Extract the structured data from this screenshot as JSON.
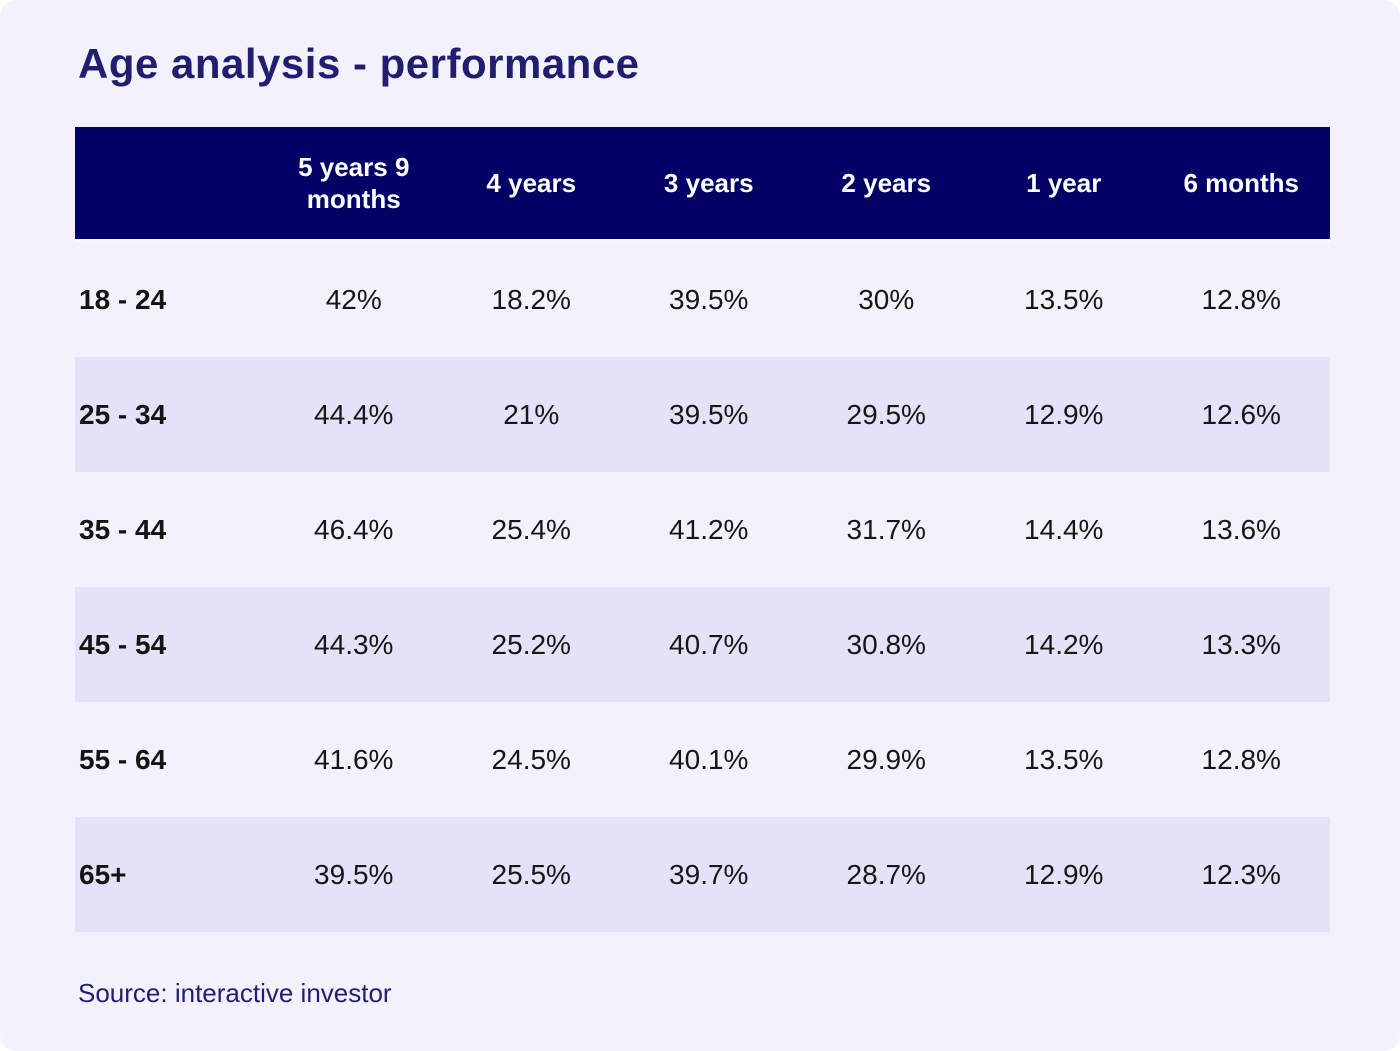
{
  "title": "Age analysis - performance",
  "source": "Source: interactive investor",
  "table": {
    "columns": [
      "",
      "5 years 9 months",
      "4 years",
      "3 years",
      "2 years",
      "1 year",
      "6 months"
    ],
    "rows": [
      {
        "label": "18 - 24",
        "values": [
          "42%",
          "18.2%",
          "39.5%",
          "30%",
          "13.5%",
          "12.8%"
        ]
      },
      {
        "label": "25 - 34",
        "values": [
          "44.4%",
          "21%",
          "39.5%",
          "29.5%",
          "12.9%",
          "12.6%"
        ]
      },
      {
        "label": "35 - 44",
        "values": [
          "46.4%",
          "25.4%",
          "41.2%",
          "31.7%",
          "14.4%",
          "13.6%"
        ]
      },
      {
        "label": "45 - 54",
        "values": [
          "44.3%",
          "25.2%",
          "40.7%",
          "30.8%",
          "14.2%",
          "13.3%"
        ]
      },
      {
        "label": "55 - 64",
        "values": [
          "41.6%",
          "24.5%",
          "40.1%",
          "29.9%",
          "13.5%",
          "12.8%"
        ]
      },
      {
        "label": "65+",
        "values": [
          "39.5%",
          "25.5%",
          "39.7%",
          "28.7%",
          "12.9%",
          "12.3%"
        ]
      }
    ]
  },
  "chart_data": {
    "type": "table",
    "title": "Age analysis - performance",
    "categories": [
      "5 years 9 months",
      "4 years",
      "3 years",
      "2 years",
      "1 year",
      "6 months"
    ],
    "series": [
      {
        "name": "18 - 24",
        "values": [
          42,
          18.2,
          39.5,
          30,
          13.5,
          12.8
        ]
      },
      {
        "name": "25 - 34",
        "values": [
          44.4,
          21,
          39.5,
          29.5,
          12.9,
          12.6
        ]
      },
      {
        "name": "35 - 44",
        "values": [
          46.4,
          25.4,
          41.2,
          31.7,
          14.4,
          13.6
        ]
      },
      {
        "name": "45 - 54",
        "values": [
          44.3,
          25.2,
          40.7,
          30.8,
          14.2,
          13.3
        ]
      },
      {
        "name": "55 - 64",
        "values": [
          41.6,
          24.5,
          40.1,
          29.9,
          13.5,
          12.8
        ]
      },
      {
        "name": "65+",
        "values": [
          39.5,
          25.5,
          39.7,
          28.7,
          12.9,
          12.3
        ]
      }
    ],
    "unit": "%",
    "source_note": "Source: interactive investor"
  },
  "colors": {
    "header_bg": "#020266",
    "stripe_bg": "#e5e1f8",
    "card_bg": "#f3f2fc",
    "title_color": "#211e70"
  }
}
